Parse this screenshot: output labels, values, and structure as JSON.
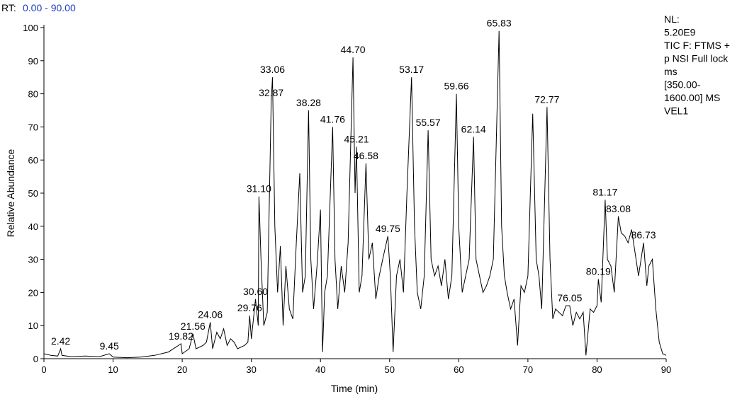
{
  "chart_data": {
    "type": "line",
    "rt_label": "RT:",
    "rt_range": "0.00 - 90.00",
    "info": [
      "NL:",
      "5.20E9",
      "TIC F: FTMS +",
      "p NSI Full lock",
      "ms",
      "[350.00-",
      "1600.00]  MS",
      "VEL1"
    ],
    "x_label": "Time (min)",
    "y_label": "Relative Abundance",
    "xlim": [
      0,
      90
    ],
    "ylim": [
      0,
      100
    ],
    "xticks": [
      0,
      10,
      20,
      30,
      40,
      50,
      60,
      70,
      80,
      90
    ],
    "yticks": [
      0,
      10,
      20,
      30,
      40,
      50,
      60,
      70,
      80,
      90,
      100
    ],
    "series": [
      {
        "color": "#000000",
        "x": [
          0,
          1,
          2,
          2.42,
          2.6,
          4,
          6,
          8,
          9.45,
          10,
          12,
          14,
          16,
          18,
          19.82,
          20,
          21,
          21.56,
          22,
          23,
          23.5,
          24.06,
          24.4,
          25,
          25.5,
          26,
          26.5,
          27,
          27.5,
          28,
          29,
          29.5,
          29.76,
          30,
          30.6,
          31,
          31.1,
          31.4,
          31.8,
          32.3,
          32.87,
          33.06,
          33.4,
          33.8,
          34.2,
          34.6,
          35,
          35.5,
          36,
          36.5,
          37,
          37.4,
          37.8,
          38.28,
          38.6,
          39,
          39.5,
          40,
          40.3,
          40.6,
          41,
          41.76,
          42.1,
          42.5,
          43,
          43.5,
          44,
          44.7,
          45,
          45.21,
          45.6,
          46,
          46.58,
          47,
          47.5,
          48,
          48.5,
          49,
          49.75,
          50.1,
          50.5,
          51,
          51.5,
          52,
          52.5,
          53.17,
          53.6,
          54,
          54.5,
          55,
          55.57,
          56,
          56.5,
          57,
          57.5,
          58,
          58.5,
          59,
          59.66,
          60,
          60.5,
          61,
          61.5,
          62.14,
          62.5,
          63,
          63.5,
          64,
          64.5,
          65,
          65.83,
          66.2,
          66.6,
          67,
          67.5,
          68,
          68.5,
          69,
          69.5,
          70,
          70.7,
          71.2,
          71.6,
          72,
          72.77,
          73.2,
          73.6,
          74,
          75,
          75.5,
          76.05,
          76.5,
          77,
          77.5,
          78,
          78.4,
          79,
          79.5,
          80,
          80.19,
          80.6,
          81.17,
          81.5,
          82,
          82.5,
          83.08,
          83.5,
          84,
          84.5,
          85,
          85.5,
          86,
          86.73,
          87.2,
          87.5,
          88,
          88.5,
          89,
          89.5,
          90
        ],
        "values": [
          1.5,
          1,
          0.8,
          3,
          1,
          0.6,
          0.8,
          0.6,
          1.5,
          0.5,
          0.3,
          0.5,
          1,
          2,
          4.5,
          1.5,
          3,
          7.5,
          3,
          4,
          5,
          11,
          3,
          8,
          6,
          9,
          4,
          6,
          5,
          3,
          4,
          5,
          13,
          6,
          18,
          10,
          49,
          30,
          10,
          14,
          78,
          85,
          40,
          20,
          34,
          10,
          28,
          15,
          12,
          35,
          56,
          20,
          25,
          75,
          30,
          15,
          28,
          45,
          2,
          20,
          25,
          70,
          30,
          15,
          28,
          20,
          35,
          91,
          50,
          64,
          20,
          25,
          59,
          30,
          35,
          18,
          25,
          30,
          37,
          25,
          2,
          25,
          30,
          20,
          50,
          85,
          40,
          20,
          15,
          25,
          69,
          30,
          25,
          28,
          22,
          30,
          18,
          25,
          80,
          40,
          20,
          25,
          30,
          67,
          30,
          25,
          20,
          22,
          25,
          30,
          99,
          40,
          25,
          20,
          15,
          18,
          4,
          22,
          20,
          25,
          74,
          30,
          25,
          15,
          76,
          30,
          12,
          15,
          13,
          16,
          16,
          10,
          14,
          12,
          14,
          1,
          15,
          14,
          16,
          24,
          17,
          48,
          30,
          28,
          20,
          43,
          38,
          37,
          35,
          39,
          32,
          25,
          35,
          22,
          28,
          30,
          15,
          5,
          1.5,
          1
        ]
      }
    ],
    "annotations": [
      {
        "label": "2.42",
        "x": 2.42,
        "y": 3
      },
      {
        "label": "9.45",
        "x": 9.45,
        "y": 1.5
      },
      {
        "label": "19.82",
        "x": 19.82,
        "y": 4.5
      },
      {
        "label": "21.56",
        "x": 21.56,
        "y": 7.5
      },
      {
        "label": "24.06",
        "x": 24.06,
        "y": 11
      },
      {
        "label": "29.76",
        "x": 29.76,
        "y": 13
      },
      {
        "label": "30.60",
        "x": 30.6,
        "y": 18
      },
      {
        "label": "31.10",
        "x": 31.1,
        "y": 49
      },
      {
        "label": "32.87",
        "x": 32.87,
        "y": 78
      },
      {
        "label": "33.06",
        "x": 33.06,
        "y": 85
      },
      {
        "label": "38.28",
        "x": 38.28,
        "y": 75
      },
      {
        "label": "41.76",
        "x": 41.76,
        "y": 70
      },
      {
        "label": "44.70",
        "x": 44.7,
        "y": 91
      },
      {
        "label": "45.21",
        "x": 45.21,
        "y": 64
      },
      {
        "label": "46.58",
        "x": 46.58,
        "y": 59
      },
      {
        "label": "49.75",
        "x": 49.75,
        "y": 37
      },
      {
        "label": "53.17",
        "x": 53.17,
        "y": 85
      },
      {
        "label": "55.57",
        "x": 55.57,
        "y": 69
      },
      {
        "label": "59.66",
        "x": 59.66,
        "y": 80
      },
      {
        "label": "62.14",
        "x": 62.14,
        "y": 67
      },
      {
        "label": "65.83",
        "x": 65.83,
        "y": 99
      },
      {
        "label": "72.77",
        "x": 72.77,
        "y": 76
      },
      {
        "label": "76.05",
        "x": 76.05,
        "y": 16
      },
      {
        "label": "80.19",
        "x": 80.19,
        "y": 24
      },
      {
        "label": "81.17",
        "x": 81.17,
        "y": 48
      },
      {
        "label": "83.08",
        "x": 83.08,
        "y": 43
      },
      {
        "label": "86.73",
        "x": 86.73,
        "y": 35
      }
    ]
  }
}
